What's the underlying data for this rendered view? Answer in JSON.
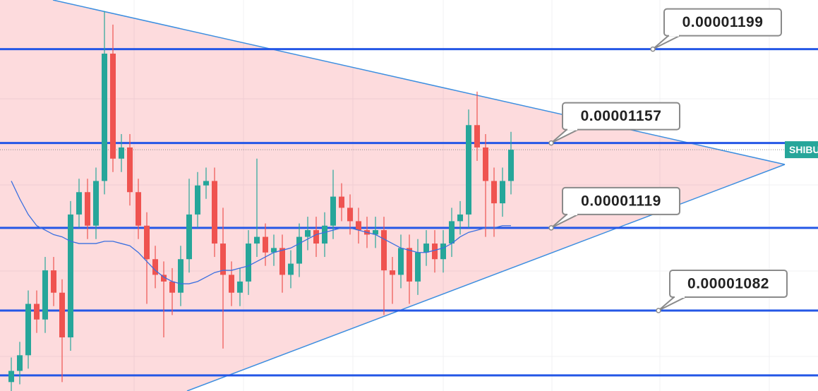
{
  "chart_data": {
    "type": "candlestick",
    "ylim": [
      1.046e-05,
      1.221e-05
    ],
    "up_color": "#26a69a",
    "down_color": "#ef5350",
    "level_color": "#2457e6",
    "levels": [
      1.199e-05,
      1.157e-05,
      1.119e-05,
      1.082e-05
    ],
    "extra_levels": [
      1.053e-05
    ],
    "current_price": 1.154e-05,
    "ticker": "SHIBU",
    "open": [
      1.05e-05,
      1.055e-05,
      1.062e-05,
      1.085e-05,
      1.078e-05,
      1.1e-05,
      1.09e-05,
      1.07e-05,
      1.125e-05,
      1.135e-05,
      1.12e-05,
      1.14e-05,
      1.197e-05,
      1.15e-05,
      1.155e-05,
      1.135e-05,
      1.12e-05,
      1.105e-05,
      1.098e-05,
      1.095e-05,
      1.09e-05,
      1.105e-05,
      1.125e-05,
      1.138e-05,
      1.14e-05,
      1.112e-05,
      1.098e-05,
      1.09e-05,
      1.095e-05,
      1.112e-05,
      1.115e-05,
      1.108e-05,
      1.11e-05,
      1.098e-05,
      1.103e-05,
      1.115e-05,
      1.118e-05,
      1.112e-05,
      1.12e-05,
      1.133e-05,
      1.128e-05,
      1.122e-05,
      1.118e-05,
      1.116e-05,
      1.118e-05,
      1.1e-05,
      1.098e-05,
      1.11e-05,
      1.095e-05,
      1.108e-05,
      1.112e-05,
      1.105e-05,
      1.112e-05,
      1.122e-05,
      1.125e-05,
      1.165e-05,
      1.155e-05,
      1.14e-05,
      1.13e-05,
      1.14e-05
    ],
    "high": [
      1.061e-05,
      1.068e-05,
      1.091e-05,
      1.091e-05,
      1.106e-05,
      1.106e-05,
      1.096e-05,
      1.131e-05,
      1.141e-05,
      1.141e-05,
      1.146e-05,
      1.216e-05,
      1.21e-05,
      1.161e-05,
      1.161e-05,
      1.141e-05,
      1.126e-05,
      1.111e-05,
      1.104e-05,
      1.101e-05,
      1.111e-05,
      1.141e-05,
      1.144e-05,
      1.146e-05,
      1.146e-05,
      1.128e-05,
      1.104e-05,
      1.101e-05,
      1.118e-05,
      1.15e-05,
      1.121e-05,
      1.116e-05,
      1.116e-05,
      1.109e-05,
      1.121e-05,
      1.124e-05,
      1.124e-05,
      1.126e-05,
      1.145e-05,
      1.139e-05,
      1.134e-05,
      1.128e-05,
      1.124e-05,
      1.124e-05,
      1.124e-05,
      1.106e-05,
      1.116e-05,
      1.116e-05,
      1.114e-05,
      1.118e-05,
      1.118e-05,
      1.118e-05,
      1.128e-05,
      1.131e-05,
      1.172e-05,
      1.18e-05,
      1.161e-05,
      1.146e-05,
      1.146e-05,
      1.162e-05
    ],
    "low": [
      1.04e-05,
      1.049e-05,
      1.056e-05,
      1.072e-05,
      1.072e-05,
      1.084e-05,
      1.05e-05,
      1.064e-05,
      1.119e-05,
      1.114e-05,
      1.114e-05,
      1.134e-05,
      1.144e-05,
      1.144e-05,
      1.129e-05,
      1.114e-05,
      1.085e-05,
      1.092e-05,
      1.07e-05,
      1.08e-05,
      1.084e-05,
      1.099e-05,
      1.119e-05,
      1.132e-05,
      1.106e-05,
      1.065e-05,
      1.084e-05,
      1.084e-05,
      1.089e-05,
      1.106e-05,
      1.102e-05,
      1.102e-05,
      1.09e-05,
      1.092e-05,
      1.097e-05,
      1.109e-05,
      1.106e-05,
      1.106e-05,
      1.114e-05,
      1.122e-05,
      1.116e-05,
      1.112e-05,
      1.11e-05,
      1.11e-05,
      1.08e-05,
      1.085e-05,
      1.092e-05,
      1.085e-05,
      1.089e-05,
      1.102e-05,
      1.099e-05,
      1.099e-05,
      1.106e-05,
      1.116e-05,
      1.119e-05,
      1.149e-05,
      1.115e-05,
      1.115e-05,
      1.124e-05,
      1.134e-05
    ],
    "close": [
      1.055e-05,
      1.062e-05,
      1.085e-05,
      1.078e-05,
      1.1e-05,
      1.09e-05,
      1.07e-05,
      1.125e-05,
      1.135e-05,
      1.12e-05,
      1.14e-05,
      1.197e-05,
      1.15e-05,
      1.155e-05,
      1.135e-05,
      1.12e-05,
      1.105e-05,
      1.098e-05,
      1.095e-05,
      1.09e-05,
      1.105e-05,
      1.125e-05,
      1.138e-05,
      1.14e-05,
      1.112e-05,
      1.098e-05,
      1.09e-05,
      1.095e-05,
      1.112e-05,
      1.115e-05,
      1.108e-05,
      1.11e-05,
      1.098e-05,
      1.103e-05,
      1.115e-05,
      1.118e-05,
      1.112e-05,
      1.12e-05,
      1.133e-05,
      1.128e-05,
      1.122e-05,
      1.118e-05,
      1.116e-05,
      1.118e-05,
      1.1e-05,
      1.098e-05,
      1.11e-05,
      1.095e-05,
      1.108e-05,
      1.112e-05,
      1.105e-05,
      1.112e-05,
      1.122e-05,
      1.125e-05,
      1.165e-05,
      1.155e-05,
      1.14e-05,
      1.13e-05,
      1.14e-05,
      1.154e-05
    ],
    "ma": {
      "color": "#3a6fe0",
      "values": [
        1.14e-05,
        1.132e-05,
        1.125e-05,
        1.12e-05,
        1.118e-05,
        1.116e-05,
        1.115e-05,
        1.113e-05,
        1.112e-05,
        1.112e-05,
        1.112e-05,
        1.113e-05,
        1.113e-05,
        1.112e-05,
        1.111e-05,
        1.108e-05,
        1.104e-05,
        1.1e-05,
        1.097e-05,
        1.095e-05,
        1.094e-05,
        1.094e-05,
        1.095e-05,
        1.097e-05,
        1.099e-05,
        1.1e-05,
        1.1e-05,
        1.101e-05,
        1.102e-05,
        1.104e-05,
        1.106e-05,
        1.108e-05,
        1.109e-05,
        1.11e-05,
        1.112e-05,
        1.114e-05,
        1.116e-05,
        1.117e-05,
        1.118e-05,
        1.119e-05,
        1.119e-05,
        1.118e-05,
        1.117e-05,
        1.116e-05,
        1.114e-05,
        1.112e-05,
        1.11e-05,
        1.109e-05,
        1.108e-05,
        1.108e-05,
        1.109e-05,
        1.11e-05,
        1.112e-05,
        1.115e-05,
        1.117e-05,
        1.118e-05,
        1.119e-05,
        1.119e-05,
        1.12e-05,
        1.12e-05
      ]
    }
  }
}
